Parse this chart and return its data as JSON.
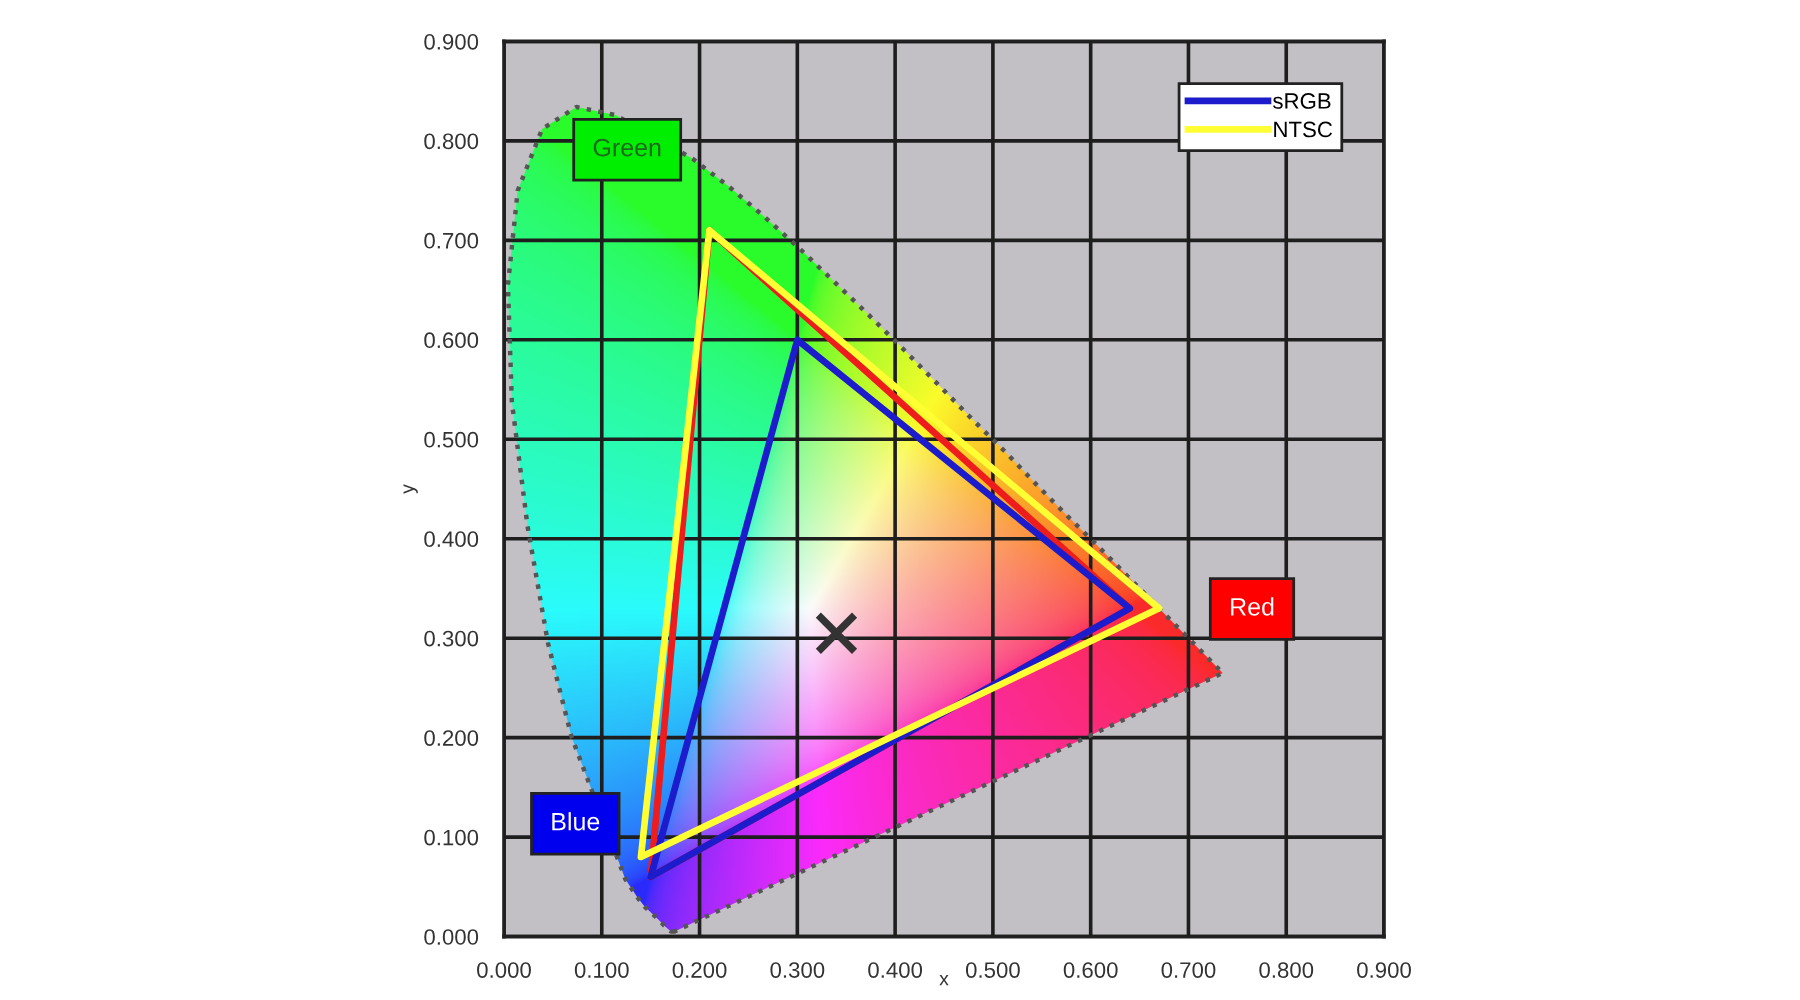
{
  "chart_data": {
    "type": "line",
    "xlabel": "x",
    "ylabel": "y",
    "xlim": [
      0,
      0.9
    ],
    "ylim": [
      0,
      0.9
    ],
    "xticks": [
      {
        "value": 0,
        "label": "0.000"
      },
      {
        "value": 0.1,
        "label": "0.100"
      },
      {
        "value": 0.2,
        "label": "0.200"
      },
      {
        "value": 0.3,
        "label": "0.300"
      },
      {
        "value": 0.4,
        "label": "0.400"
      },
      {
        "value": 0.5,
        "label": "0.500"
      },
      {
        "value": 0.6,
        "label": "0.600"
      },
      {
        "value": 0.7,
        "label": "0.700"
      },
      {
        "value": 0.8,
        "label": "0.800"
      },
      {
        "value": 0.9,
        "label": "0.900"
      }
    ],
    "yticks": [
      {
        "value": 0,
        "label": "0.000"
      },
      {
        "value": 0.1,
        "label": "0.100"
      },
      {
        "value": 0.2,
        "label": "0.200"
      },
      {
        "value": 0.3,
        "label": "0.300"
      },
      {
        "value": 0.4,
        "label": "0.400"
      },
      {
        "value": 0.5,
        "label": "0.500"
      },
      {
        "value": 0.6,
        "label": "0.600"
      },
      {
        "value": 0.7,
        "label": "0.700"
      },
      {
        "value": 0.8,
        "label": "0.800"
      },
      {
        "value": 0.9,
        "label": "0.900"
      }
    ],
    "grid": true,
    "legend": "top right",
    "series": [
      {
        "color": "#555555",
        "line_style": "dotted",
        "x": [
          0.174,
          0.171,
          0.164,
          0.157,
          0.144,
          0.136,
          0.124,
          0.069,
          0.045,
          0.024,
          0.008,
          0.004,
          0.014,
          0.039,
          0.074,
          0.114,
          0.193,
          0.23,
          0.266,
          0.302,
          0.337,
          0.373,
          0.409,
          0.444,
          0.479,
          0.513,
          0.545,
          0.575,
          0.603,
          0.627,
          0.666,
          0.692,
          0.708,
          0.719,
          0.726,
          0.735,
          0.174
        ],
        "values": [
          0.005,
          0.005,
          0.011,
          0.018,
          0.03,
          0.04,
          0.058,
          0.201,
          0.295,
          0.413,
          0.538,
          0.655,
          0.75,
          0.812,
          0.834,
          0.826,
          0.782,
          0.754,
          0.724,
          0.692,
          0.659,
          0.625,
          0.59,
          0.555,
          0.52,
          0.487,
          0.454,
          0.424,
          0.397,
          0.373,
          0.334,
          0.308,
          0.292,
          0.281,
          0.274,
          0.265,
          0.005
        ]
      },
      {
        "color": "#ee1c1c",
        "x": [
          0.64,
          0.21,
          0.15,
          0.64
        ],
        "values": [
          0.33,
          0.71,
          0.06,
          0.33
        ]
      },
      {
        "name": "sRGB",
        "color": "#1c1ccc",
        "x": [
          0.64,
          0.3,
          0.15,
          0.64
        ],
        "values": [
          0.33,
          0.6,
          0.06,
          0.33
        ]
      },
      {
        "name": "NTSC",
        "color": "#ffff33",
        "x": [
          0.67,
          0.21,
          0.14,
          0.67
        ],
        "values": [
          0.33,
          0.71,
          0.08,
          0.33
        ]
      },
      {
        "type": "scatter",
        "marker": "cross",
        "color": "#333333",
        "x": [
          0.34
        ],
        "values": [
          0.305
        ]
      }
    ],
    "annotations": [
      "Green",
      "Red",
      "Blue"
    ]
  }
}
